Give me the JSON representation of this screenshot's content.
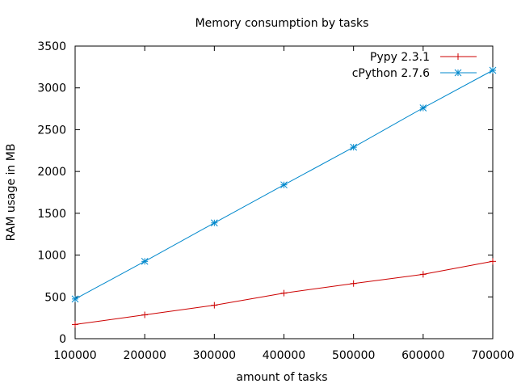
{
  "chart_data": {
    "type": "line",
    "title": "Memory consumption by tasks",
    "xlabel": "amount of tasks",
    "ylabel": "RAM usage in MB",
    "xlim": [
      100000,
      700000
    ],
    "ylim": [
      0,
      3500
    ],
    "x_ticks": [
      "100000",
      "200000",
      "300000",
      "400000",
      "500000",
      "600000",
      "700000"
    ],
    "y_ticks": [
      "0",
      "500",
      "1000",
      "1500",
      "2000",
      "2500",
      "3000",
      "3500"
    ],
    "grid": false,
    "legend_position": "top-right",
    "x": [
      100000,
      200000,
      300000,
      400000,
      500000,
      600000,
      700000
    ],
    "series": [
      {
        "name": "Pypy 2.3.1",
        "color": "#cc0000",
        "marker": "plus",
        "values": [
          170,
          285,
          400,
          545,
          660,
          770,
          925
        ]
      },
      {
        "name": "cPython 2.7.6",
        "color": "#0088cc",
        "marker": "star",
        "values": [
          475,
          925,
          1385,
          1840,
          2290,
          2760,
          3210
        ]
      }
    ]
  }
}
